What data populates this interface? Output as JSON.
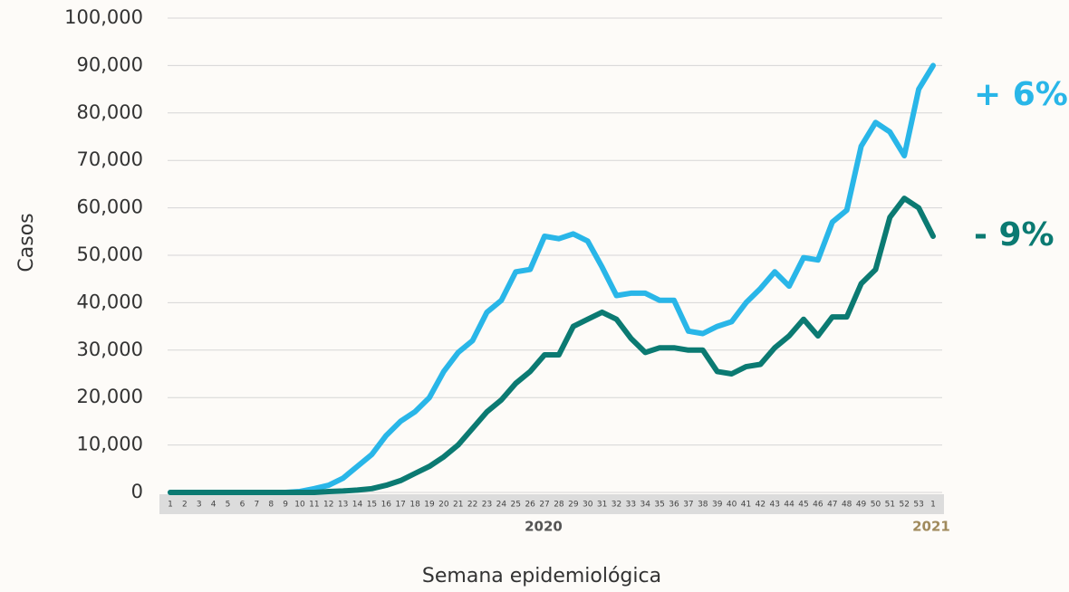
{
  "chart_data": {
    "type": "line",
    "y_label": "Casos",
    "x_label": "Semana epidemiológica",
    "categories": [
      "1",
      "2",
      "3",
      "4",
      "5",
      "6",
      "7",
      "8",
      "9",
      "10",
      "11",
      "12",
      "13",
      "14",
      "15",
      "16",
      "17",
      "18",
      "19",
      "20",
      "21",
      "22",
      "23",
      "24",
      "25",
      "26",
      "27",
      "28",
      "29",
      "30",
      "31",
      "32",
      "33",
      "34",
      "35",
      "36",
      "37",
      "38",
      "39",
      "40",
      "41",
      "42",
      "43",
      "44",
      "45",
      "46",
      "47",
      "48",
      "49",
      "50",
      "51",
      "52",
      "53",
      "1"
    ],
    "year_labels": [
      "2020",
      "2021"
    ],
    "series": [
      {
        "color": "#29b6e8",
        "values": [
          0,
          0,
          0,
          0,
          0,
          0,
          0,
          0,
          0,
          200,
          800,
          1500,
          3000,
          5500,
          8000,
          12000,
          15000,
          17000,
          20000,
          25500,
          29500,
          32000,
          38000,
          40500,
          46500,
          47000,
          54000,
          53500,
          54500,
          53000,
          47500,
          41500,
          42000,
          42000,
          40500,
          40500,
          34000,
          33500,
          35000,
          36000,
          40000,
          43000,
          46500,
          43500,
          49500,
          49000,
          57000,
          59500,
          73000,
          78000,
          76000,
          71000,
          85000,
          90000
        ]
      },
      {
        "color": "#0b7a72",
        "values": [
          0,
          0,
          0,
          0,
          0,
          0,
          0,
          0,
          0,
          0,
          0,
          200,
          300,
          500,
          800,
          1500,
          2500,
          4000,
          5500,
          7500,
          10000,
          13500,
          17000,
          19500,
          23000,
          25500,
          29000,
          29000,
          35000,
          36500,
          38000,
          36500,
          32500,
          29500,
          30500,
          30500,
          30000,
          30000,
          25500,
          25000,
          26500,
          27000,
          30500,
          33000,
          36500,
          33000,
          37000,
          37000,
          44000,
          47000,
          58000,
          62000,
          60000,
          54000
        ]
      }
    ],
    "annotations": [
      "+ 6%",
      "- 9%"
    ],
    "ylim": [
      0,
      100000
    ],
    "yticks": [
      0,
      {
        "value": 10000,
        "label": "10,000"
      },
      {
        "value": 20000,
        "label": "20,000"
      },
      {
        "value": 30000,
        "label": "30,000"
      },
      {
        "value": 40000,
        "label": "40,000"
      },
      {
        "value": 50000,
        "label": "50,000"
      },
      {
        "value": 60000,
        "label": "60,000"
      },
      {
        "value": 70000,
        "label": "70,000"
      },
      {
        "value": 80000,
        "label": "80,000"
      },
      {
        "value": 90000,
        "label": "90,000"
      },
      {
        "value": 100000,
        "label": "100,000"
      }
    ],
    "grid": true
  }
}
